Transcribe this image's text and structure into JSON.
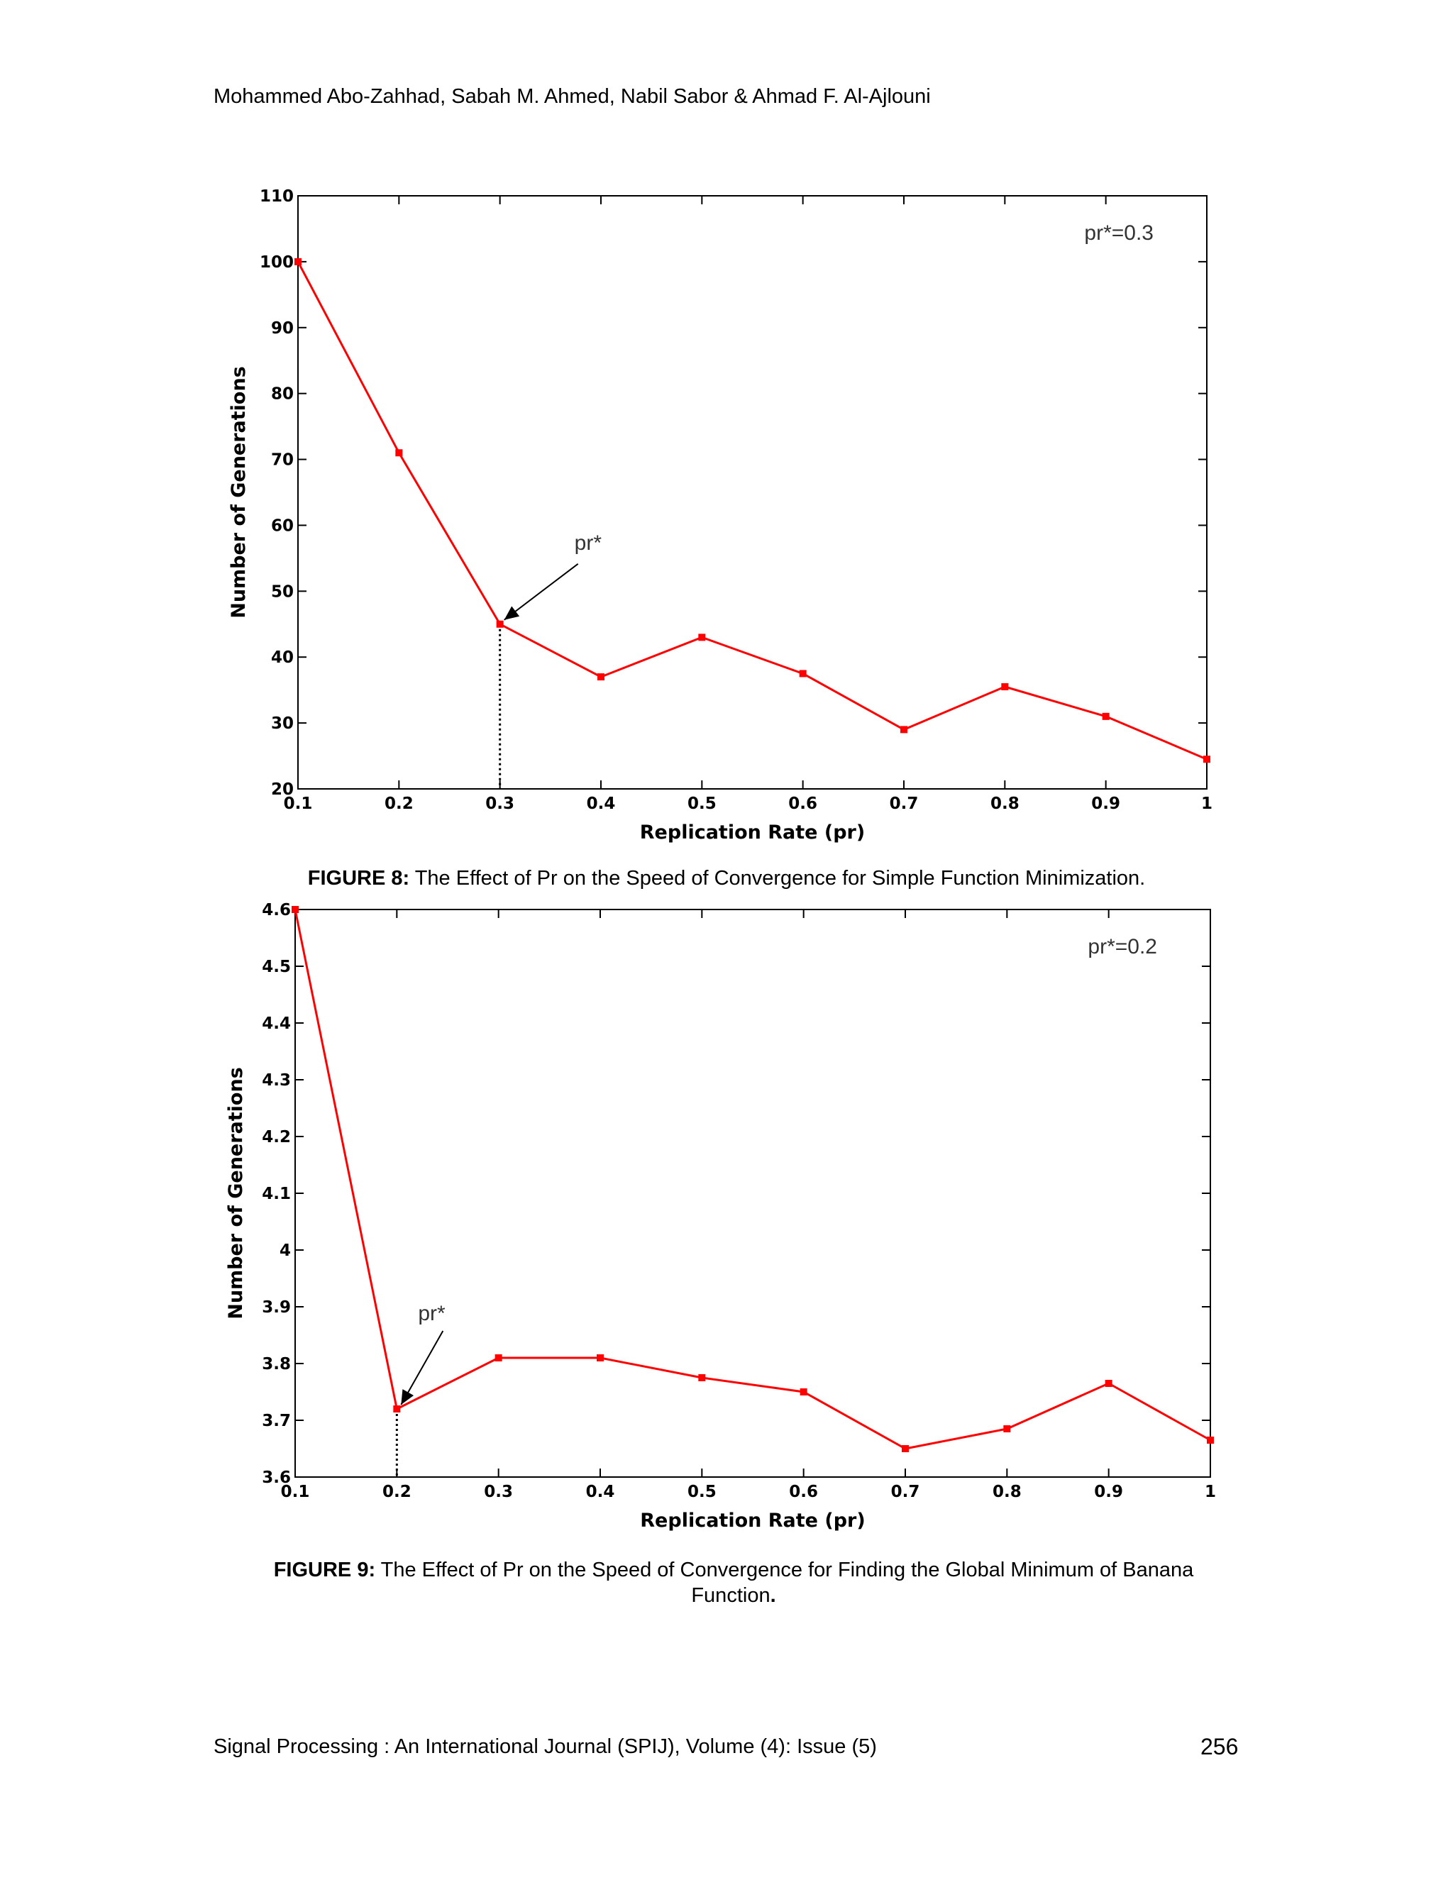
{
  "header": {
    "authors": "Mohammed Abo-Zahhad, Sabah M. Ahmed, Nabil Sabor & Ahmad F. Al-Ajlouni"
  },
  "figures": [
    {
      "caption_label": "FIGURE 8:",
      "caption_text": "The Effect of Pr on the Speed of Convergence for Simple Function Minimization."
    },
    {
      "caption_label": "FIGURE 9:",
      "caption_text": "The Effect of Pr on the Speed of Convergence for Finding the Global Minimum of Banana Function",
      "caption_end": "."
    }
  ],
  "footer": {
    "journal": "Signal Processing : An International Journal (SPIJ), Volume (4): Issue (5)",
    "page_number": "256"
  },
  "chart_data": [
    {
      "type": "line",
      "title": "",
      "xlabel": "Replication Rate (pr)",
      "ylabel": "Number of Generations",
      "x": [
        0.1,
        0.2,
        0.3,
        0.4,
        0.5,
        0.6,
        0.7,
        0.8,
        0.9,
        1.0
      ],
      "x_tick_labels": [
        "0.1",
        "0.2",
        "0.3",
        "0.4",
        "0.5",
        "0.6",
        "0.7",
        "0.8",
        "0.9",
        "1"
      ],
      "series": [
        {
          "values": [
            100,
            71,
            45,
            37,
            43,
            37.5,
            29,
            35.5,
            31,
            24.5
          ],
          "color": "#ff0000"
        }
      ],
      "xlim": [
        0.1,
        1.0
      ],
      "ylim": [
        20,
        110
      ],
      "y_ticks": [
        20,
        30,
        40,
        50,
        60,
        70,
        80,
        90,
        100,
        110
      ],
      "y_tick_labels": [
        "20",
        "30",
        "40",
        "50",
        "60",
        "70",
        "80",
        "90",
        "100",
        "110"
      ],
      "grid": false,
      "box_annotation": "pr*=0.3",
      "arrow_label": "pr*",
      "marked_x": 0.3,
      "marked_y": 45
    },
    {
      "type": "line",
      "title": "",
      "xlabel": "Replication Rate (pr)",
      "ylabel": "Number of Generations",
      "x": [
        0.1,
        0.2,
        0.3,
        0.4,
        0.5,
        0.6,
        0.7,
        0.8,
        0.9,
        1.0
      ],
      "x_tick_labels": [
        "0.1",
        "0.2",
        "0.3",
        "0.4",
        "0.5",
        "0.6",
        "0.7",
        "0.8",
        "0.9",
        "1"
      ],
      "series": [
        {
          "values": [
            4.6,
            3.72,
            3.81,
            3.81,
            3.775,
            3.75,
            3.65,
            3.685,
            3.765,
            3.665
          ],
          "color": "#ff0000"
        }
      ],
      "xlim": [
        0.1,
        1.0
      ],
      "ylim": [
        3.6,
        4.6
      ],
      "y_ticks": [
        3.6,
        3.7,
        3.8,
        3.9,
        4.0,
        4.1,
        4.2,
        4.3,
        4.4,
        4.5,
        4.6
      ],
      "y_tick_labels": [
        "3.6",
        "3.7",
        "3.8",
        "3.9",
        "4",
        "4.1",
        "4.2",
        "4.3",
        "4.4",
        "4.5",
        "4.6"
      ],
      "grid": false,
      "box_annotation": "pr*=0.2",
      "arrow_label": "pr*",
      "marked_x": 0.2,
      "marked_y": 3.72
    }
  ]
}
